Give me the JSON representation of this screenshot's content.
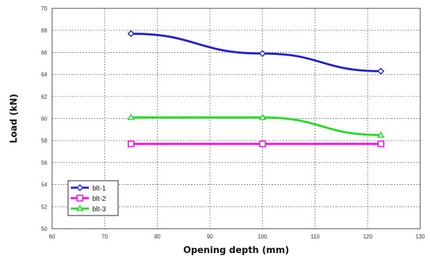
{
  "chart_data": {
    "type": "line",
    "xlabel": "Opening depth (mm)",
    "ylabel": "Load (kN)",
    "xlim": [
      60,
      130
    ],
    "ylim": [
      50,
      70
    ],
    "xticks": [
      60,
      70,
      80,
      90,
      100,
      110,
      120,
      130
    ],
    "yticks": [
      50,
      52,
      54,
      56,
      58,
      60,
      62,
      64,
      66,
      68,
      70
    ],
    "grid": true,
    "legend_position": "bottom-left",
    "series": [
      {
        "name": "blt-1",
        "color": "#1f1fd6",
        "marker": "diamond",
        "x": [
          75,
          100,
          122.5
        ],
        "y": [
          67.7,
          65.9,
          64.3
        ]
      },
      {
        "name": "blt-2",
        "color": "#ff00ff",
        "marker": "square",
        "x": [
          75,
          100,
          122.5
        ],
        "y": [
          57.7,
          57.7,
          57.7
        ]
      },
      {
        "name": "blt-3",
        "color": "#22dd22",
        "marker": "triangle",
        "x": [
          75,
          100,
          122.5
        ],
        "y": [
          60.1,
          60.1,
          58.5
        ]
      }
    ]
  }
}
